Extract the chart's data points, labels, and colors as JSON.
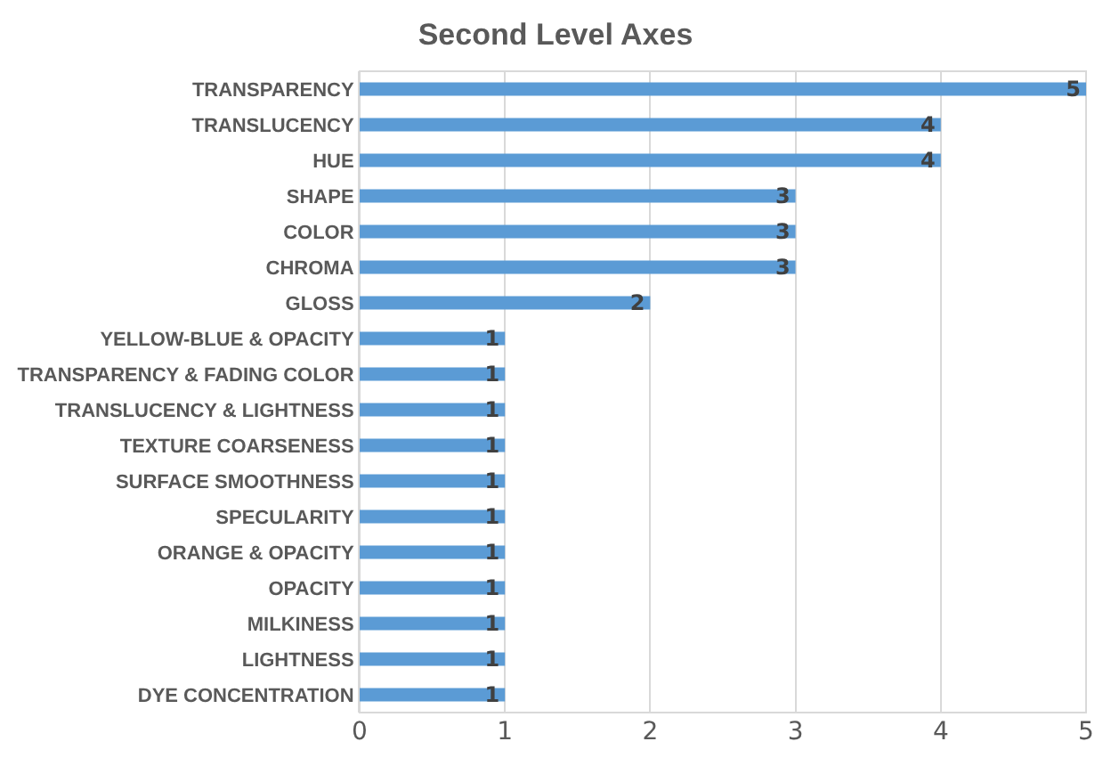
{
  "chart_data": {
    "type": "bar",
    "orientation": "horizontal",
    "title": "Second Level Axes",
    "categories": [
      "TRANSPARENCY",
      "TRANSLUCENCY",
      "HUE",
      "SHAPE",
      "COLOR",
      "CHROMA",
      "GLOSS",
      "YELLOW-BLUE & OPACITY",
      "TRANSPARENCY & FADING COLOR",
      "TRANSLUCENCY & LIGHTNESS",
      "TEXTURE COARSENESS",
      "SURFACE SMOOTHNESS",
      "SPECULARITY",
      "ORANGE & OPACITY",
      "OPACITY",
      "MILKINESS",
      "LIGHTNESS",
      "DYE CONCENTRATION"
    ],
    "values": [
      5,
      4,
      4,
      3,
      3,
      3,
      2,
      1,
      1,
      1,
      1,
      1,
      1,
      1,
      1,
      1,
      1,
      1
    ],
    "color": "#5b9bd5",
    "xlim": [
      0,
      5
    ],
    "xticks": [
      0,
      1,
      2,
      3,
      4,
      5
    ],
    "grid": "x",
    "data_labels": true,
    "legend": false
  }
}
